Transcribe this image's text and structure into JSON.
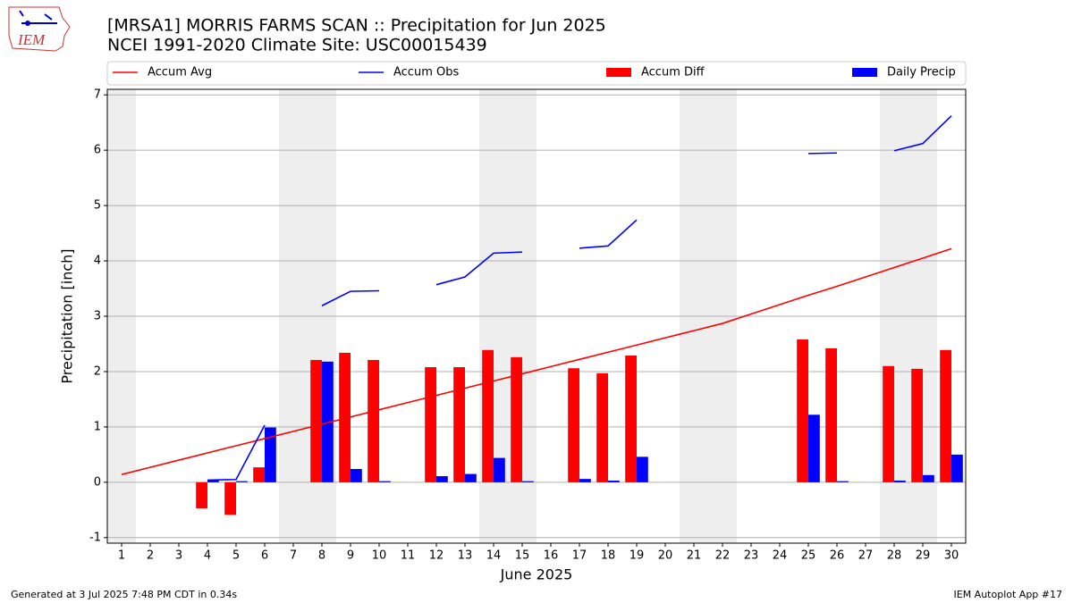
{
  "chart_data": {
    "type": "bar",
    "title": "[MRSA1] MORRIS FARMS SCAN :: Precipitation for Jun 2025",
    "subtitle": "NCEI 1991-2020 Climate Site: USC00015439",
    "xlabel": "June 2025",
    "ylabel": "Precipitation [inch]",
    "logo_text": "IEM",
    "footer_left": "Generated at 3 Jul 2025 7:48 PM CDT in 0.34s",
    "footer_right": "IEM Autoplot App #17",
    "x": [
      1,
      2,
      3,
      4,
      5,
      6,
      7,
      8,
      9,
      10,
      11,
      12,
      13,
      14,
      15,
      16,
      17,
      18,
      19,
      20,
      21,
      22,
      23,
      24,
      25,
      26,
      27,
      28,
      29,
      30
    ],
    "xlim": [
      0.5,
      30.5
    ],
    "xticks": [
      1,
      2,
      3,
      4,
      5,
      6,
      7,
      8,
      9,
      10,
      11,
      12,
      13,
      14,
      15,
      16,
      17,
      18,
      19,
      20,
      21,
      22,
      23,
      24,
      25,
      26,
      27,
      28,
      29,
      30
    ],
    "ylim": [
      -1.1,
      7.1
    ],
    "yticks": [
      -1,
      0,
      1,
      2,
      3,
      4,
      5,
      6,
      7
    ],
    "grid": true,
    "legend": "top",
    "weekend_days": [
      1,
      7,
      8,
      14,
      15,
      21,
      22,
      28,
      29
    ],
    "series": [
      {
        "name": "Accum Avg",
        "type": "line",
        "color": "#ff0000",
        "values": [
          0.14,
          0.27,
          0.4,
          0.53,
          0.66,
          0.79,
          0.92,
          1.05,
          1.18,
          1.31,
          1.44,
          1.57,
          1.7,
          1.83,
          1.96,
          2.09,
          2.22,
          2.35,
          2.48,
          2.61,
          2.74,
          2.87,
          3.04,
          3.21,
          3.38,
          3.54,
          3.71,
          3.88,
          4.05,
          4.22
        ]
      },
      {
        "name": "Accum Obs",
        "type": "line",
        "color": "#0000ff",
        "values": [
          null,
          null,
          null,
          0.04,
          0.05,
          1.03,
          null,
          3.19,
          3.45,
          3.46,
          null,
          3.57,
          3.71,
          4.14,
          4.16,
          null,
          4.23,
          4.27,
          4.74,
          null,
          null,
          null,
          null,
          null,
          5.94,
          5.95,
          null,
          5.99,
          6.12,
          6.62
        ]
      },
      {
        "name": "Accum Diff",
        "type": "bar",
        "color": "#ff0000",
        "values": [
          null,
          null,
          null,
          -0.47,
          -0.59,
          0.27,
          null,
          2.21,
          2.34,
          2.21,
          null,
          2.08,
          2.08,
          2.39,
          2.26,
          null,
          2.06,
          1.97,
          2.29,
          null,
          null,
          null,
          null,
          null,
          2.58,
          2.42,
          null,
          2.1,
          2.05,
          2.39
        ]
      },
      {
        "name": "Daily Precip",
        "type": "bar",
        "color": "#0000ff",
        "values": [
          null,
          null,
          null,
          0.04,
          0.02,
          0.99,
          null,
          2.18,
          0.24,
          0.02,
          null,
          0.11,
          0.15,
          0.44,
          0.02,
          null,
          0.06,
          0.03,
          0.46,
          null,
          null,
          null,
          null,
          null,
          1.22,
          0.02,
          null,
          0.03,
          0.13,
          0.5
        ]
      }
    ]
  }
}
